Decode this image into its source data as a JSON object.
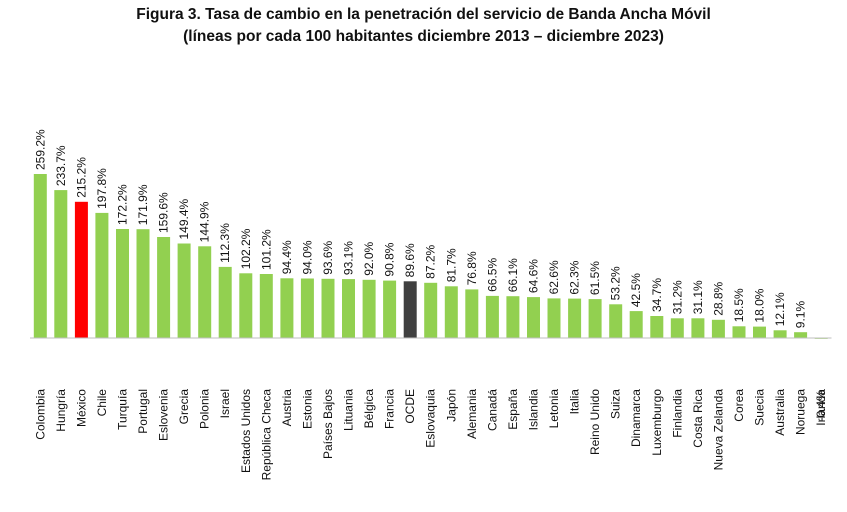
{
  "chart_data": {
    "type": "bar",
    "title": "Figura 3. Tasa de cambio en la penetración del servicio de Banda Ancha Móvil",
    "subtitle": "(líneas por cada 100 habitantes diciembre 2013 – diciembre 2023)",
    "xlabel": "",
    "ylabel": "",
    "ylim": [
      -5,
      270
    ],
    "grid": false,
    "legend": "none",
    "colors": {
      "default": "#92D050",
      "highlight": "#FF0000",
      "oecd": "#404040"
    },
    "categories": [
      "Colombia",
      "Hungría",
      "México",
      "Chile",
      "Turquía",
      "Portugal",
      "Eslovenia",
      "Grecia",
      "Polonia",
      "Israel",
      "Estados Unidos",
      "República Checa",
      "Austria",
      "Estonia",
      "Países Bajos",
      "Lituania",
      "Bélgica",
      "Francia",
      "OCDE",
      "Eslovaquia",
      "Japón",
      "Alemania",
      "Canadá",
      "España",
      "Islandia",
      "Letonia",
      "Italia",
      "Reino Unido",
      "Suiza",
      "Dinamarca",
      "Luxemburgo",
      "Finlandia",
      "Costa Rica",
      "Nueva Zelanda",
      "Corea",
      "Suecia",
      "Australia",
      "Noruega",
      "Irlanda"
    ],
    "values": [
      259.2,
      233.7,
      215.2,
      197.8,
      172.2,
      171.9,
      159.6,
      149.4,
      144.9,
      112.3,
      102.2,
      101.2,
      94.4,
      94.0,
      93.6,
      93.1,
      92.0,
      90.8,
      89.6,
      87.2,
      81.7,
      76.8,
      66.5,
      66.1,
      64.6,
      62.6,
      62.3,
      61.5,
      53.2,
      42.5,
      34.7,
      31.2,
      31.1,
      28.8,
      18.5,
      18.0,
      12.1,
      9.1,
      -0.4
    ],
    "value_labels": [
      "259.2%",
      "233.7%",
      "215.2%",
      "197.8%",
      "172.2%",
      "171.9%",
      "159.6%",
      "149.4%",
      "144.9%",
      "112.3%",
      "102.2%",
      "101.2%",
      "94.4%",
      "94.0%",
      "93.6%",
      "93.1%",
      "92.0%",
      "90.8%",
      "89.6%",
      "87.2%",
      "81.7%",
      "76.8%",
      "66.5%",
      "66.1%",
      "64.6%",
      "62.6%",
      "62.3%",
      "61.5%",
      "53.2%",
      "42.5%",
      "34.7%",
      "31.2%",
      "31.1%",
      "28.8%",
      "18.5%",
      "18.0%",
      "12.1%",
      "9.1%",
      "-0.4%"
    ],
    "highlight": {
      "México": "highlight",
      "OCDE": "oecd"
    }
  }
}
